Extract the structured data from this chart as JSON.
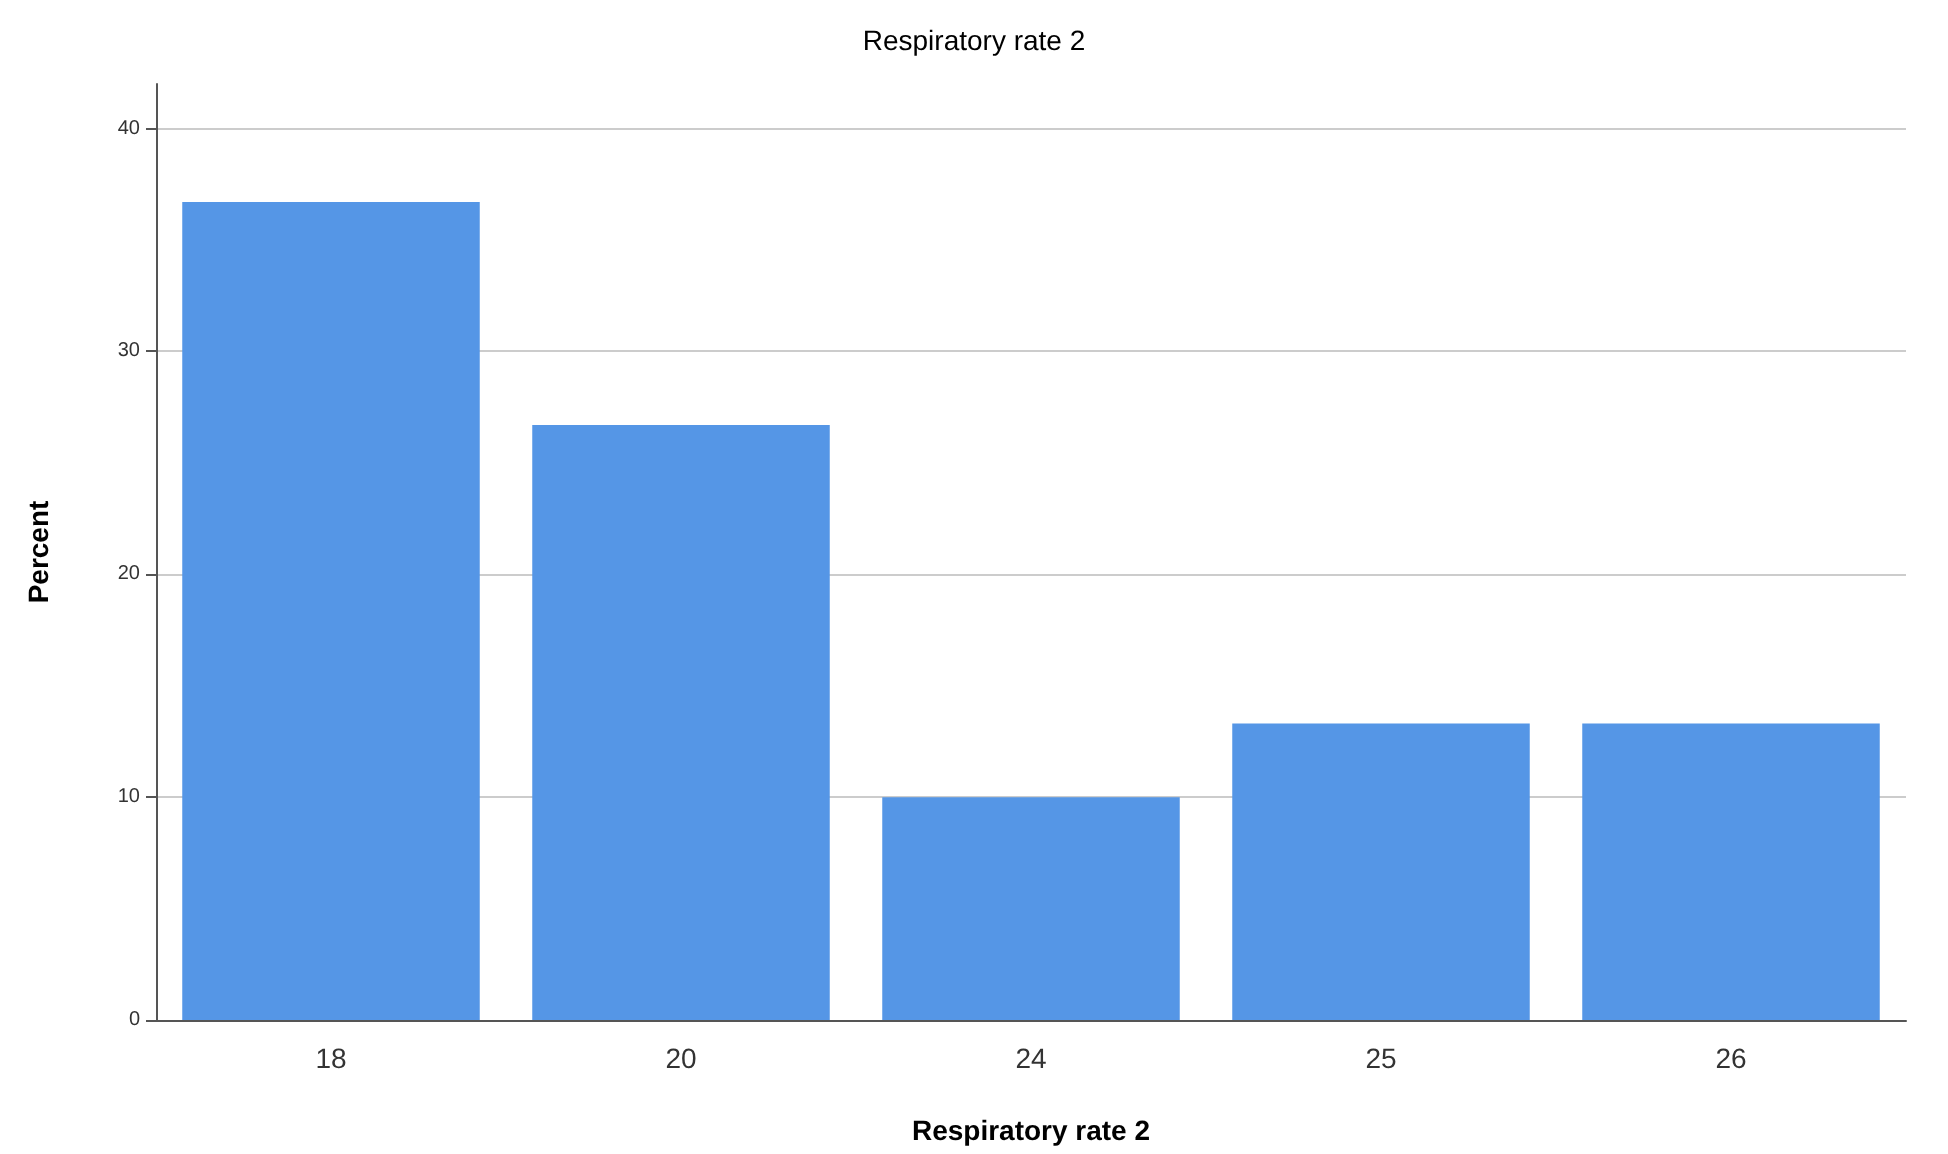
{
  "chart_data": {
    "type": "bar",
    "title": "Respiratory rate 2",
    "xlabel": "Respiratory rate 2",
    "ylabel": "Percent",
    "categories": [
      "18",
      "20",
      "24",
      "25",
      "26"
    ],
    "values": [
      36.7,
      26.7,
      10,
      13.3,
      13.3
    ],
    "color": "#5596e6",
    "ylim": [
      0,
      42
    ],
    "yticks": [
      0,
      10,
      20,
      30,
      40
    ],
    "grid": "y"
  }
}
